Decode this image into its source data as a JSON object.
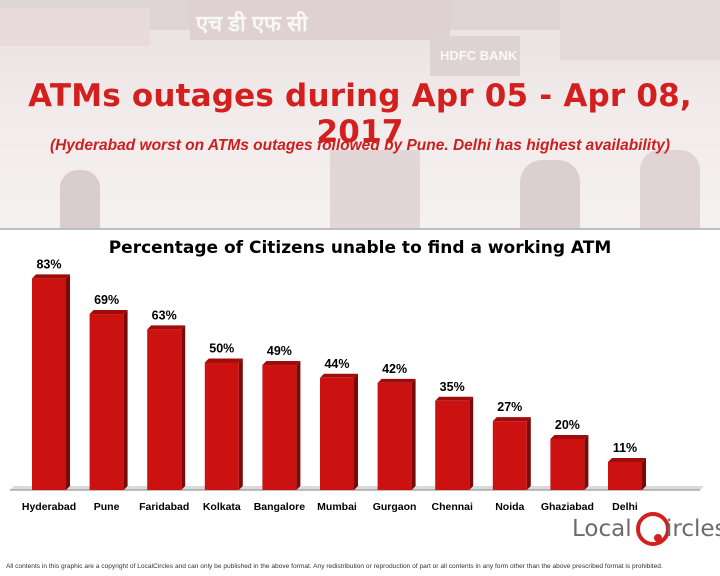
{
  "header": {
    "title": "ATMs outages during Apr 05 - Apr 08, 2017",
    "subtitle": "(Hyderabad worst on ATMs outages followed by Pune. Delhi has highest availability)"
  },
  "banner_signs": {
    "hindi": "एच डी एफ सी",
    "bank": "HDFC BANK"
  },
  "chart_data": {
    "type": "bar",
    "title": "Percentage of Citizens unable to find a working ATM",
    "categories": [
      "Hyderabad",
      "Pune",
      "Faridabad",
      "Kolkata",
      "Bangalore",
      "Mumbai",
      "Gurgaon",
      "Chennai",
      "Noida",
      "Ghaziabad",
      "Delhi"
    ],
    "values": [
      83,
      69,
      63,
      50,
      49,
      44,
      42,
      35,
      27,
      20,
      11
    ],
    "data_labels": [
      "83%",
      "69%",
      "63%",
      "50%",
      "49%",
      "44%",
      "42%",
      "35%",
      "27%",
      "20%",
      "11%"
    ],
    "ylim": [
      0,
      100
    ],
    "grid": false,
    "legend": "none",
    "bar_color": "#cc1111"
  },
  "logo": {
    "text_left": "Local",
    "text_right": "ircles"
  },
  "footer": {
    "copyright": "All contents in this graphic are a copyright of LocalCircles and can only be published in the above format. Any redistribution or reproduction of part or all contents in any form other than the above prescribed format is prohibited."
  }
}
